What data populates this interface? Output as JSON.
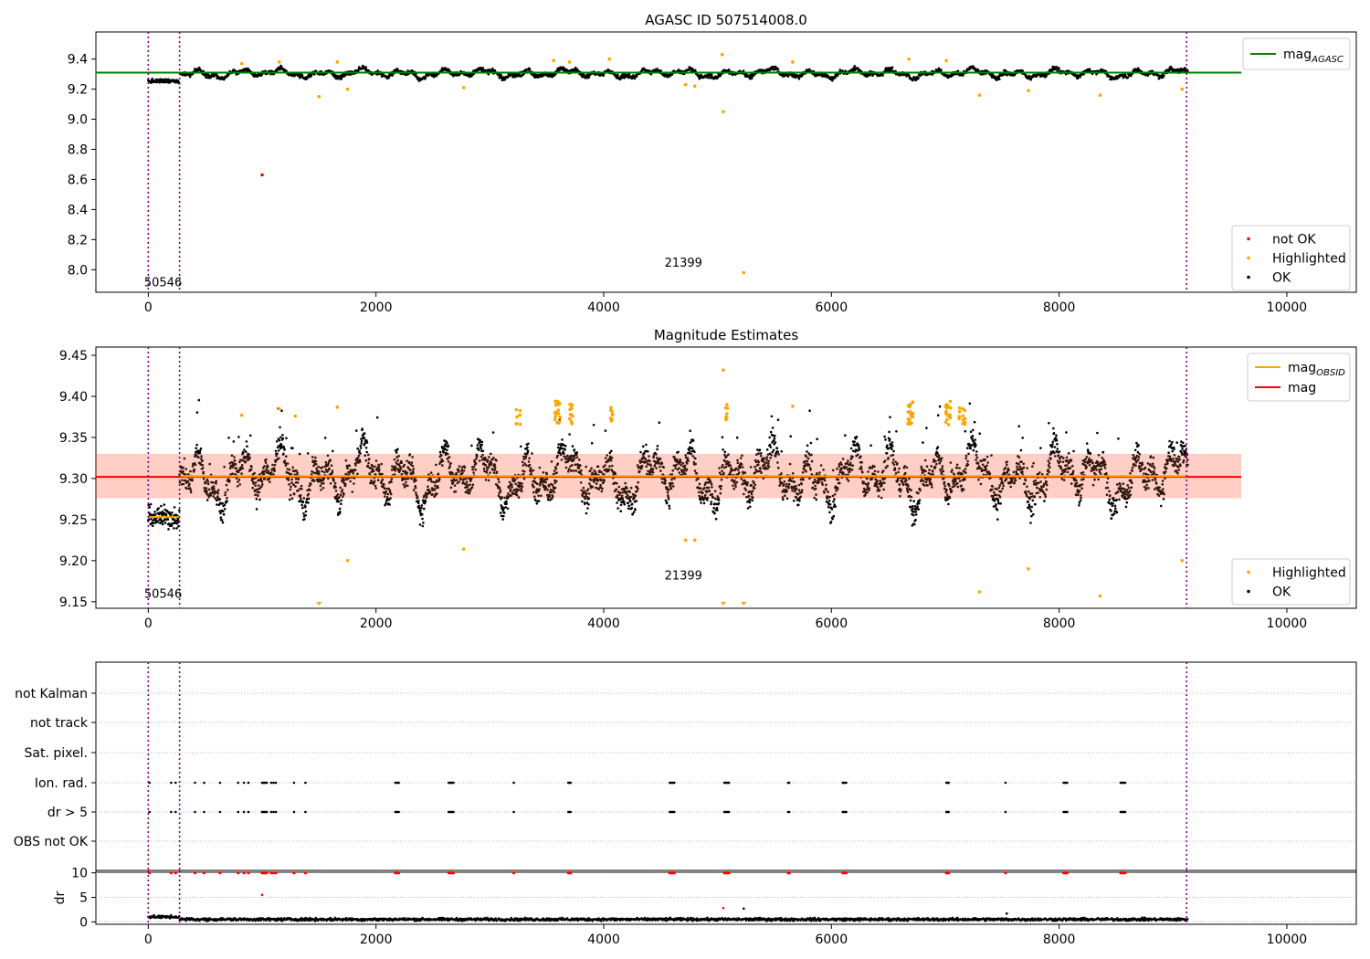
{
  "figure": {
    "title_top": "AGASC ID 507514008.0",
    "title_mid": "Magnitude Estimates"
  },
  "colors": {
    "ok": "#000000",
    "highlighted": "#ffa500",
    "not_ok": "#ff0000",
    "mag_agasc": "#008000",
    "mag_obsid": "#ffa500",
    "mag": "#ff0000",
    "band_fill": "#ff0000",
    "boundary": "#800080",
    "grid": "#b0b0b0"
  },
  "chart_data": [
    {
      "id": "top",
      "type": "scatter",
      "title": "AGASC ID 507514008.0",
      "xlim": [
        -460,
        10610
      ],
      "ylim": [
        7.85,
        9.58
      ],
      "x_ticks": [
        0,
        2000,
        4000,
        6000,
        8000,
        10000
      ],
      "y_ticks": [
        8.0,
        8.2,
        8.4,
        8.6,
        8.8,
        9.0,
        9.2,
        9.4
      ],
      "y_tick_labels": [
        "8.0",
        "8.2",
        "8.4",
        "8.6",
        "8.8",
        "9.0",
        "9.2",
        "9.4"
      ],
      "obsid_boundaries": [
        0,
        275,
        9120
      ],
      "obsid_labels": [
        {
          "text": "50546",
          "x": 130,
          "y": 7.89
        },
        {
          "text": "21399",
          "x": 4700,
          "y": 8.02
        }
      ],
      "lines": [
        {
          "name": "mag_AGASC",
          "y": 9.31,
          "x": [
            -460,
            9600
          ],
          "color": "#008000"
        }
      ],
      "highlighted_points": [
        [
          1500,
          9.15
        ],
        [
          1750,
          9.2
        ],
        [
          2770,
          9.21
        ],
        [
          4720,
          9.23
        ],
        [
          4800,
          9.22
        ],
        [
          5050,
          9.05
        ],
        [
          5230,
          7.98
        ],
        [
          7300,
          9.16
        ],
        [
          7730,
          9.19
        ],
        [
          8360,
          9.16
        ],
        [
          9080,
          9.2
        ],
        [
          5040,
          9.43
        ],
        [
          3560,
          9.39
        ],
        [
          3700,
          9.38
        ],
        [
          4050,
          9.4
        ],
        [
          6680,
          9.4
        ],
        [
          7010,
          9.39
        ],
        [
          1660,
          9.38
        ],
        [
          1150,
          9.38
        ],
        [
          5660,
          9.38
        ],
        [
          820,
          9.37
        ]
      ],
      "not_ok_points": [
        [
          1000,
          8.63
        ]
      ],
      "ok_series": {
        "x_range": [
          0,
          9130
        ],
        "base": 9.305,
        "first_obsid_level": 9.253
      },
      "legend_upper": [
        {
          "label": "mag",
          "sub": "AGASC",
          "kind": "line",
          "color": "#008000"
        }
      ],
      "legend_lower": [
        {
          "label": "not OK",
          "kind": "dot",
          "color": "#ff0000"
        },
        {
          "label": "Highlighted",
          "kind": "dot",
          "color": "#ffa500"
        },
        {
          "label": "OK",
          "kind": "dot",
          "color": "#000000"
        }
      ]
    },
    {
      "id": "middle",
      "type": "scatter",
      "title": "Magnitude Estimates",
      "xlim": [
        -460,
        10610
      ],
      "ylim": [
        9.142,
        9.46
      ],
      "x_ticks": [
        0,
        2000,
        4000,
        6000,
        8000,
        10000
      ],
      "y_ticks": [
        9.15,
        9.2,
        9.25,
        9.3,
        9.35,
        9.4,
        9.45
      ],
      "y_tick_labels": [
        "9.15",
        "9.20",
        "9.25",
        "9.30",
        "9.35",
        "9.40",
        "9.45"
      ],
      "obsid_boundaries": [
        0,
        275,
        9120
      ],
      "obsid_labels": [
        {
          "text": "50546",
          "x": 130,
          "y": 9.155
        },
        {
          "text": "21399",
          "x": 4700,
          "y": 9.177
        }
      ],
      "band": {
        "y_low": 9.276,
        "y_high": 9.33,
        "x": [
          -460,
          9600
        ]
      },
      "lines": [
        {
          "name": "mag",
          "y": 9.302,
          "x": [
            -460,
            9600
          ],
          "color": "#ff0000"
        },
        {
          "name": "mag_OBSID",
          "y": 9.253,
          "x": [
            0,
            275
          ],
          "color": "#ffa500"
        },
        {
          "name": "mag_OBSID",
          "y": 9.303,
          "x": [
            275,
            9120
          ],
          "color": "#ffa500"
        }
      ],
      "highlighted_points": [
        [
          1750,
          9.2
        ],
        [
          2770,
          9.214
        ],
        [
          4720,
          9.225
        ],
        [
          4800,
          9.225
        ],
        [
          7300,
          9.162
        ],
        [
          7730,
          9.19
        ],
        [
          8360,
          9.157
        ],
        [
          9080,
          9.2
        ],
        [
          5050,
          9.432
        ],
        [
          1660,
          9.387
        ],
        [
          1150,
          9.385
        ],
        [
          5660,
          9.388
        ],
        [
          820,
          9.377
        ],
        [
          1290,
          9.376
        ]
      ],
      "highlighted_clusters": [
        [
          3570,
          3580,
          3590,
          3600,
          3610
        ],
        [
          3700,
          3710,
          3720
        ],
        [
          4060,
          4070
        ],
        [
          5070,
          5080
        ],
        [
          6670,
          6680,
          6690,
          6700,
          6710
        ],
        [
          7000,
          7010,
          7020,
          7040
        ],
        [
          7120,
          7150,
          7170
        ],
        [
          3230,
          3260
        ]
      ],
      "clipped_below": [
        1500,
        5050,
        5230
      ],
      "legend_upper": [
        {
          "label": "mag",
          "sub": "OBSID",
          "kind": "line",
          "color": "#ffa500"
        },
        {
          "label": "mag",
          "kind": "line",
          "color": "#ff0000"
        }
      ],
      "legend_lower": [
        {
          "label": "Highlighted",
          "kind": "dot",
          "color": "#ffa500"
        },
        {
          "label": "OK",
          "kind": "dot",
          "color": "#000000"
        }
      ]
    },
    {
      "id": "flags",
      "type": "scatter",
      "categories": [
        "OBS not OK",
        "dr > 5",
        "Ion. rad.",
        "Sat. pixel.",
        "not track",
        "not Kalman"
      ],
      "xlim": [
        -460,
        10610
      ],
      "obsid_boundaries": [
        0,
        275,
        9120
      ],
      "flag_x": [
        10,
        200,
        240,
        410,
        490,
        630,
        790,
        840,
        880,
        1000,
        1010,
        1020,
        1030,
        1040,
        1080,
        1100,
        1120,
        1280,
        1380,
        2170,
        2180,
        2190,
        2200,
        2640,
        2650,
        2660,
        2670,
        2680,
        3210,
        3690,
        3700,
        3710,
        4580,
        4590,
        4600,
        4610,
        4620,
        5060,
        5070,
        5080,
        5090,
        5100,
        5620,
        5630,
        6100,
        6110,
        6120,
        6130,
        7010,
        7020,
        7030,
        7530,
        8040,
        8050,
        8060,
        8070,
        8540,
        8550,
        8560,
        8570,
        8580
      ],
      "flag_rows": [
        "dr > 5",
        "Ion. rad."
      ]
    },
    {
      "id": "dr",
      "type": "scatter",
      "ylabel": "dr",
      "xlim": [
        -460,
        10610
      ],
      "ylim": [
        -0.5,
        10.5
      ],
      "x_ticks": [
        0,
        2000,
        4000,
        6000,
        8000,
        10000
      ],
      "y_ticks": [
        0,
        5,
        10
      ],
      "y_tick_labels": [
        "0",
        "5",
        "10"
      ],
      "obsid_boundaries": [
        0,
        275,
        9120
      ],
      "capped_value": 10,
      "outliers": [
        [
          1000,
          5.5
        ],
        [
          5050,
          2.8
        ],
        [
          5230,
          2.7
        ],
        [
          7540,
          1.7
        ]
      ]
    }
  ]
}
